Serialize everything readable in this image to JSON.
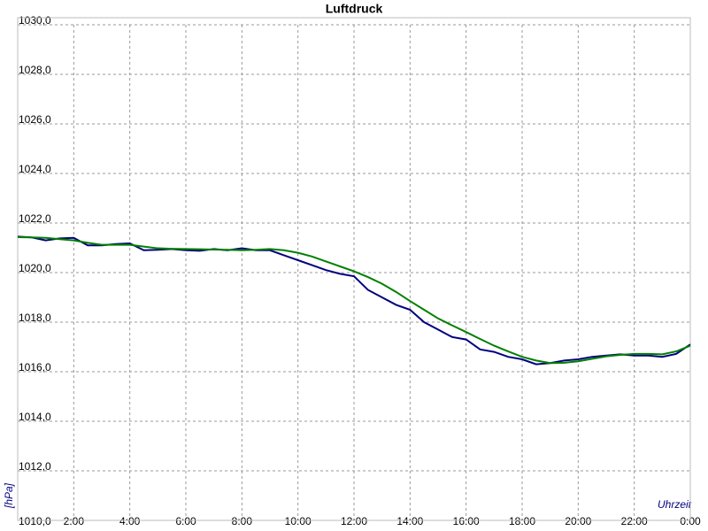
{
  "chart_data": {
    "type": "line",
    "title": "Luftdruck",
    "y_label": "[hPa]",
    "x_label": "Uhrzeit",
    "x": [
      0,
      0.5,
      1,
      1.5,
      2,
      2.5,
      3,
      3.5,
      4,
      4.5,
      5,
      5.5,
      6,
      6.5,
      7,
      7.5,
      8,
      8.5,
      9,
      9.5,
      10,
      10.5,
      11,
      11.5,
      12,
      12.5,
      13,
      13.5,
      14,
      14.5,
      15,
      15.5,
      16,
      16.5,
      17,
      17.5,
      18,
      18.5,
      19,
      19.5,
      20,
      20.5,
      21,
      21.5,
      22,
      22.5,
      23,
      23.5,
      24
    ],
    "series": [
      {
        "color": "#00007f",
        "values": [
          1021.45,
          1021.42,
          1021.3,
          1021.38,
          1021.4,
          1021.1,
          1021.1,
          1021.15,
          1021.18,
          1020.9,
          1020.92,
          1020.95,
          1020.9,
          1020.88,
          1020.95,
          1020.9,
          1020.98,
          1020.9,
          1020.9,
          1020.7,
          1020.5,
          1020.3,
          1020.1,
          1019.95,
          1019.85,
          1019.3,
          1019.0,
          1018.7,
          1018.5,
          1018.0,
          1017.7,
          1017.4,
          1017.3,
          1016.9,
          1016.8,
          1016.6,
          1016.5,
          1016.3,
          1016.35,
          1016.45,
          1016.5,
          1016.6,
          1016.65,
          1016.7,
          1016.65,
          1016.65,
          1016.6,
          1016.72,
          1017.1
        ]
      },
      {
        "color": "#008000",
        "values": [
          1021.43,
          1021.42,
          1021.4,
          1021.35,
          1021.3,
          1021.2,
          1021.12,
          1021.12,
          1021.12,
          1021.05,
          1020.98,
          1020.96,
          1020.95,
          1020.94,
          1020.93,
          1020.92,
          1020.9,
          1020.92,
          1020.95,
          1020.9,
          1020.8,
          1020.65,
          1020.45,
          1020.25,
          1020.05,
          1019.82,
          1019.55,
          1019.22,
          1018.85,
          1018.5,
          1018.15,
          1017.87,
          1017.6,
          1017.32,
          1017.05,
          1016.82,
          1016.6,
          1016.45,
          1016.35,
          1016.36,
          1016.42,
          1016.52,
          1016.62,
          1016.68,
          1016.72,
          1016.72,
          1016.7,
          1016.82,
          1017.05
        ]
      }
    ],
    "xlim": [
      0,
      24
    ],
    "xticks": [
      {
        "value": 2,
        "label": "2:00"
      },
      {
        "value": 4,
        "label": "4:00"
      },
      {
        "value": 6,
        "label": "6:00"
      },
      {
        "value": 8,
        "label": "8:00"
      },
      {
        "value": 10,
        "label": "10:00"
      },
      {
        "value": 12,
        "label": "12:00"
      },
      {
        "value": 14,
        "label": "14:00"
      },
      {
        "value": 16,
        "label": "16:00"
      },
      {
        "value": 18,
        "label": "18:00"
      },
      {
        "value": 20,
        "label": "20:00"
      },
      {
        "value": 22,
        "label": "22:00"
      },
      {
        "value": 24,
        "label": "0:00"
      }
    ],
    "ylim": [
      1010,
      1030
    ],
    "yticks": [
      {
        "value": 1010,
        "label": "1010,0"
      },
      {
        "value": 1012,
        "label": "1012,0"
      },
      {
        "value": 1014,
        "label": "1014,0"
      },
      {
        "value": 1016,
        "label": "1016,0"
      },
      {
        "value": 1018,
        "label": "1018,0"
      },
      {
        "value": 1020,
        "label": "1020,0"
      },
      {
        "value": 1022,
        "label": "1022,0"
      },
      {
        "value": 1024,
        "label": "1024,0"
      },
      {
        "value": 1026,
        "label": "1026,0"
      },
      {
        "value": 1028,
        "label": "1028,0"
      },
      {
        "value": 1030,
        "label": "1030,0"
      }
    ],
    "grid": true
  }
}
